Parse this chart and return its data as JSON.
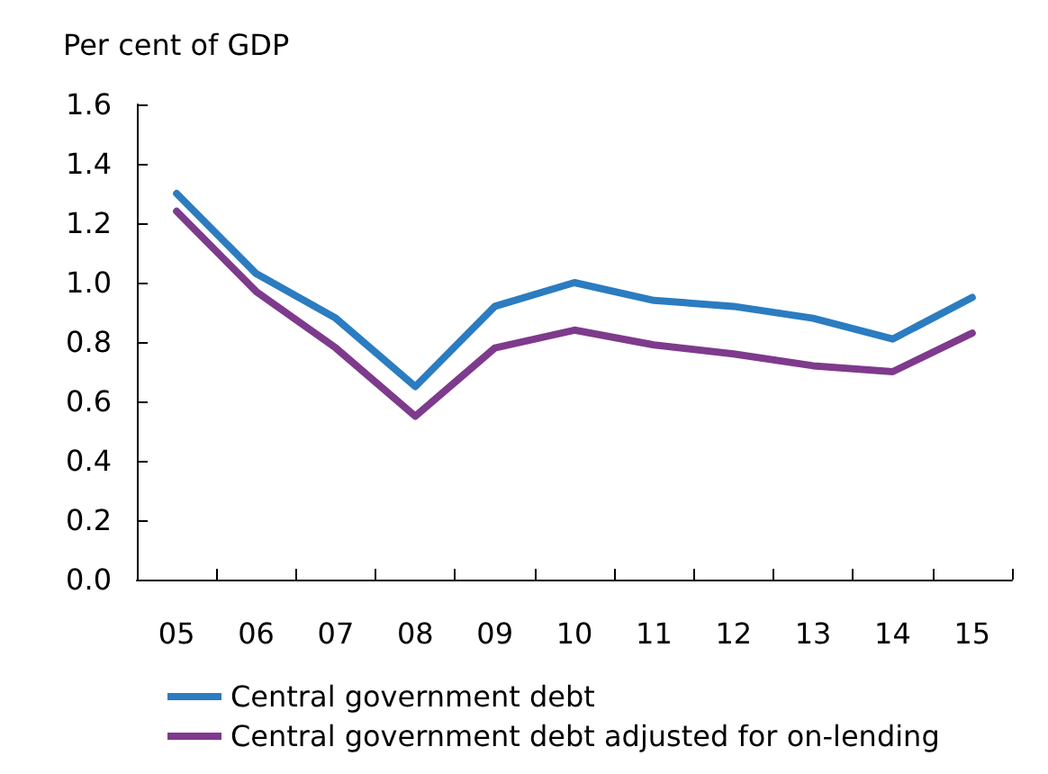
{
  "chart_data": {
    "type": "line",
    "ylabel": "Per cent of GDP",
    "categories": [
      "05",
      "06",
      "07",
      "08",
      "09",
      "10",
      "11",
      "12",
      "13",
      "14",
      "15"
    ],
    "series": [
      {
        "name": "Central government debt",
        "color": "#2b7cc0",
        "values": [
          1.3,
          1.03,
          0.88,
          0.65,
          0.92,
          1.0,
          0.94,
          0.92,
          0.88,
          0.81,
          0.95
        ]
      },
      {
        "name": "Central government debt adjusted for on-lending",
        "color": "#7e3a8c",
        "values": [
          1.24,
          0.97,
          0.78,
          0.55,
          0.78,
          0.84,
          0.79,
          0.76,
          0.72,
          0.7,
          0.83
        ]
      }
    ],
    "ylim": [
      0,
      1.6
    ],
    "yticks": [
      {
        "value": 0,
        "label": "0.0"
      },
      0.2,
      0.4,
      0.6,
      0.8,
      {
        "value": 1,
        "label": "1.0"
      },
      1.2,
      1.4,
      1.6
    ],
    "grid": false,
    "legend": "bottom left",
    "marker": "none",
    "line_style": "solid"
  }
}
